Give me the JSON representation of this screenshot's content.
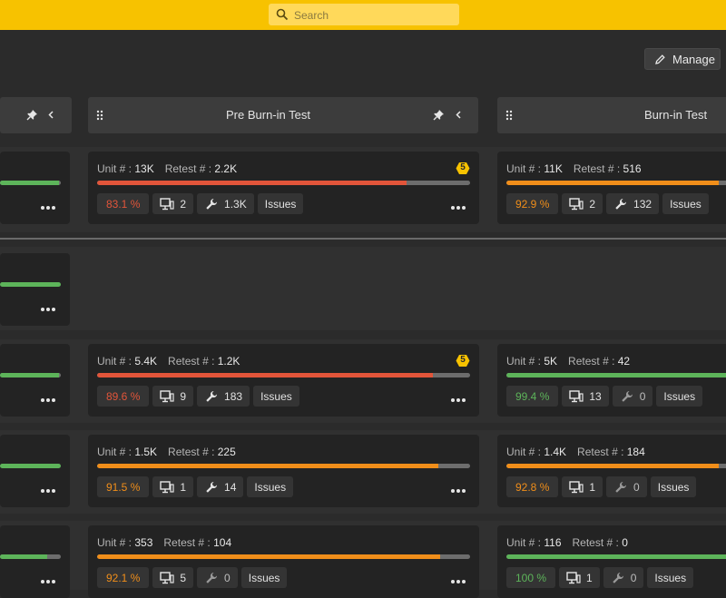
{
  "search": {
    "placeholder": "Search"
  },
  "toolbar": {
    "manage_label": "Manage"
  },
  "columns": [
    {
      "title": "Pre Burn-in Test"
    },
    {
      "title": "Burn-in Test"
    }
  ],
  "labels": {
    "unit": "Unit # :",
    "retest": "Retest # :",
    "issues": "Issues"
  },
  "colors": {
    "red": "#e2553a",
    "orange": "#f08e1a",
    "green": "#5db45a",
    "accent": "#f7c200"
  },
  "rows": [
    {
      "left_progress": 0.97,
      "pre": {
        "unit": "13K",
        "retest": "2.2K",
        "badge": "5",
        "progress": 0.83,
        "color": "red",
        "pct": "83.1 %",
        "stations": "2",
        "repairs": "1.3K"
      },
      "burn": {
        "unit": "11K",
        "retest": "516",
        "progress": 0.93,
        "color": "orange",
        "pct": "92.9 %",
        "stations": "2",
        "repairs": "132"
      }
    },
    {
      "left_progress": 1.0
    },
    {
      "left_progress": 0.97,
      "pre": {
        "unit": "5.4K",
        "retest": "1.2K",
        "badge": "5",
        "progress": 0.9,
        "color": "red",
        "pct": "89.6 %",
        "stations": "9",
        "repairs": "183"
      },
      "burn": {
        "unit": "5K",
        "retest": "42",
        "progress": 0.99,
        "color": "green",
        "pct": "99.4 %",
        "stations": "13",
        "repairs": "0"
      }
    },
    {
      "left_progress": 1.0,
      "pre": {
        "unit": "1.5K",
        "retest": "225",
        "progress": 0.915,
        "color": "orange",
        "pct": "91.5 %",
        "stations": "1",
        "repairs": "14"
      },
      "burn": {
        "unit": "1.4K",
        "retest": "184",
        "progress": 0.93,
        "color": "orange",
        "pct": "92.8 %",
        "stations": "1",
        "repairs": "0"
      }
    },
    {
      "left_progress": 0.77,
      "pre": {
        "unit": "353",
        "retest": "104",
        "progress": 0.92,
        "color": "orange",
        "pct": "92.1 %",
        "stations": "5",
        "repairs": "0"
      },
      "burn": {
        "unit": "116",
        "retest": "0",
        "progress": 1.0,
        "color": "green",
        "pct": "100 %",
        "stations": "1",
        "repairs": "0"
      }
    }
  ]
}
